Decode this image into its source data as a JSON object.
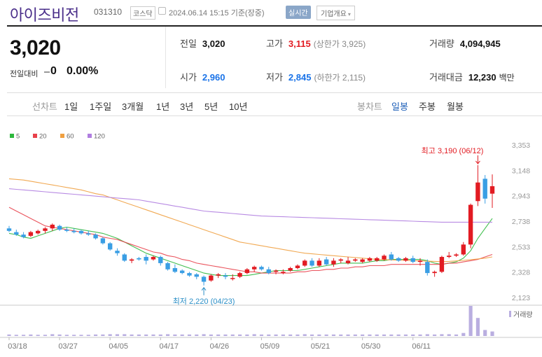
{
  "header": {
    "name": "아이즈비전",
    "code": "031310",
    "market": "코스닥",
    "datetime": "2024.06.14 15:15 기준(장중)",
    "realtime": "실시간",
    "overview": "기업개요"
  },
  "quote": {
    "price": "3,020",
    "change_label": "전일대비",
    "change_value": "0",
    "change_pct": "0.00%",
    "prev_label": "전일",
    "prev_value": "3,020",
    "high_label": "고가",
    "high_value": "3,115",
    "upper_limit": "(상한가 3,925)",
    "volume_label": "거래량",
    "volume_value": "4,094,945",
    "open_label": "시가",
    "open_value": "2,960",
    "low_label": "저가",
    "low_value": "2,845",
    "lower_limit": "(하한가 2,115)",
    "amount_label": "거래대금",
    "amount_value": "12,230",
    "amount_unit": "백만"
  },
  "tabs": {
    "line_label": "선차트",
    "line_items": [
      "1일",
      "1주일",
      "3개월",
      "1년",
      "3년",
      "5년",
      "10년"
    ],
    "candle_label": "봉차트",
    "candle_items": [
      "일봉",
      "주봉",
      "월봉"
    ],
    "active": "일봉"
  },
  "chart_data": {
    "type": "candlestick",
    "legend": [
      {
        "name": "5",
        "color": "#2db83d"
      },
      {
        "name": "20",
        "color": "#e8414b"
      },
      {
        "name": "60",
        "color": "#f0a040"
      },
      {
        "name": "120",
        "color": "#b07ee0"
      }
    ],
    "y_ticks": [
      3353,
      3148,
      2943,
      2738,
      2533,
      2328,
      2123
    ],
    "y_tick_labels": [
      "3,353",
      "3,148",
      "2,943",
      "2,738",
      "2,533",
      "2,328",
      "2,123"
    ],
    "ylim": [
      2123,
      3353
    ],
    "x_tick_labels": [
      "03/18",
      "03/27",
      "04/05",
      "04/17",
      "04/26",
      "05/09",
      "05/21",
      "05/30",
      "06/11"
    ],
    "x_tick_index": [
      0,
      7,
      14,
      21,
      28,
      35,
      42,
      49,
      56
    ],
    "high_annotation": "최고 3,190 (06/12)",
    "low_annotation": "최저 2,220 (04/23)",
    "volume_label": "거래량",
    "colors": {
      "up": "#e21b22",
      "down": "#3a9ee4",
      "volume": "#b9aee0"
    },
    "candles": [
      [
        2680,
        2700,
        2650,
        2660
      ],
      [
        2650,
        2670,
        2620,
        2630
      ],
      [
        2630,
        2650,
        2600,
        2610
      ],
      [
        2620,
        2660,
        2610,
        2650
      ],
      [
        2640,
        2670,
        2630,
        2660
      ],
      [
        2660,
        2690,
        2640,
        2680
      ],
      [
        2680,
        2720,
        2660,
        2710
      ],
      [
        2700,
        2710,
        2660,
        2670
      ],
      [
        2670,
        2690,
        2650,
        2660
      ],
      [
        2660,
        2680,
        2640,
        2650
      ],
      [
        2660,
        2670,
        2630,
        2640
      ],
      [
        2640,
        2660,
        2620,
        2630
      ],
      [
        2630,
        2640,
        2590,
        2600
      ],
      [
        2600,
        2610,
        2550,
        2560
      ],
      [
        2560,
        2570,
        2500,
        2510
      ],
      [
        2500,
        2520,
        2460,
        2480
      ],
      [
        2470,
        2480,
        2410,
        2420
      ],
      [
        2420,
        2440,
        2400,
        2430
      ],
      [
        2440,
        2450,
        2420,
        2430
      ],
      [
        2450,
        2470,
        2390,
        2420
      ],
      [
        2430,
        2460,
        2420,
        2450
      ],
      [
        2450,
        2460,
        2380,
        2400
      ],
      [
        2400,
        2410,
        2340,
        2350
      ],
      [
        2360,
        2390,
        2320,
        2330
      ],
      [
        2340,
        2350,
        2310,
        2320
      ],
      [
        2320,
        2330,
        2290,
        2300
      ],
      [
        2310,
        2320,
        2270,
        2290
      ],
      [
        2290,
        2300,
        2220,
        2250
      ],
      [
        2260,
        2310,
        2250,
        2300
      ],
      [
        2300,
        2320,
        2280,
        2310
      ],
      [
        2300,
        2320,
        2270,
        2290
      ],
      [
        2280,
        2310,
        2260,
        2280
      ],
      [
        2290,
        2330,
        2280,
        2320
      ],
      [
        2320,
        2360,
        2310,
        2350
      ],
      [
        2350,
        2380,
        2330,
        2370
      ],
      [
        2370,
        2380,
        2340,
        2350
      ],
      [
        2350,
        2370,
        2310,
        2320
      ],
      [
        2330,
        2350,
        2310,
        2340
      ],
      [
        2320,
        2350,
        2310,
        2330
      ],
      [
        2340,
        2370,
        2330,
        2360
      ],
      [
        2360,
        2390,
        2350,
        2380
      ],
      [
        2380,
        2430,
        2370,
        2420
      ],
      [
        2420,
        2440,
        2370,
        2380
      ],
      [
        2380,
        2440,
        2370,
        2420
      ],
      [
        2430,
        2450,
        2380,
        2390
      ],
      [
        2390,
        2440,
        2370,
        2420
      ],
      [
        2420,
        2440,
        2400,
        2430
      ],
      [
        2400,
        2450,
        2390,
        2420
      ],
      [
        2420,
        2440,
        2410,
        2430
      ],
      [
        2410,
        2440,
        2400,
        2430
      ],
      [
        2420,
        2450,
        2410,
        2440
      ],
      [
        2420,
        2450,
        2410,
        2440
      ],
      [
        2430,
        2470,
        2420,
        2460
      ],
      [
        2470,
        2490,
        2420,
        2430
      ],
      [
        2440,
        2450,
        2410,
        2420
      ],
      [
        2420,
        2450,
        2410,
        2440
      ],
      [
        2440,
        2460,
        2400,
        2410
      ],
      [
        2410,
        2440,
        2380,
        2420
      ],
      [
        2410,
        2430,
        2300,
        2320
      ],
      [
        2320,
        2340,
        2290,
        2330
      ],
      [
        2330,
        2460,
        2320,
        2450
      ],
      [
        2450,
        2490,
        2440,
        2460
      ],
      [
        2460,
        2480,
        2450,
        2470
      ],
      [
        2470,
        2570,
        2460,
        2550
      ],
      [
        2550,
        2880,
        2520,
        2870
      ],
      [
        2900,
        3190,
        2860,
        3050
      ],
      [
        3080,
        3110,
        2880,
        2920
      ],
      [
        2960,
        3115,
        2845,
        3020
      ]
    ],
    "volumes": [
      0.05,
      0.04,
      0.04,
      0.05,
      0.04,
      0.04,
      0.06,
      0.05,
      0.04,
      0.04,
      0.04,
      0.04,
      0.05,
      0.05,
      0.06,
      0.06,
      0.06,
      0.05,
      0.05,
      0.05,
      0.05,
      0.05,
      0.06,
      0.05,
      0.05,
      0.05,
      0.05,
      0.06,
      0.05,
      0.05,
      0.05,
      0.05,
      0.05,
      0.05,
      0.06,
      0.05,
      0.05,
      0.05,
      0.05,
      0.05,
      0.05,
      0.06,
      0.05,
      0.05,
      0.05,
      0.05,
      0.05,
      0.05,
      0.05,
      0.05,
      0.05,
      0.05,
      0.05,
      0.05,
      0.05,
      0.05,
      0.05,
      0.05,
      0.06,
      0.05,
      0.06,
      0.06,
      0.05,
      0.1,
      1.0,
      0.6,
      0.2,
      0.15
    ],
    "ma": [
      {
        "name": "5",
        "color": "#2db83d",
        "values": [
          2640,
          2630,
          2610,
          2600,
          2620,
          2640,
          2660,
          2680,
          2690,
          2680,
          2670,
          2660,
          2650,
          2640,
          2620,
          2600,
          2570,
          2540,
          2510,
          2480,
          2460,
          2440,
          2420,
          2400,
          2380,
          2360,
          2340,
          2320,
          2310,
          2300,
          2300,
          2300,
          2300,
          2300,
          2310,
          2320,
          2330,
          2340,
          2340,
          2340,
          2340,
          2350,
          2360,
          2370,
          2380,
          2390,
          2400,
          2400,
          2400,
          2400,
          2410,
          2420,
          2420,
          2430,
          2430,
          2430,
          2430,
          2430,
          2420,
          2400,
          2390,
          2400,
          2410,
          2440,
          2500,
          2600,
          2680,
          2760
        ]
      },
      {
        "name": "20",
        "color": "#e8414b",
        "values": [
          2850,
          2820,
          2790,
          2760,
          2730,
          2700,
          2690,
          2680,
          2670,
          2660,
          2650,
          2640,
          2630,
          2610,
          2600,
          2590,
          2570,
          2550,
          2530,
          2510,
          2490,
          2480,
          2460,
          2450,
          2430,
          2420,
          2400,
          2390,
          2380,
          2370,
          2360,
          2350,
          2340,
          2330,
          2330,
          2320,
          2320,
          2320,
          2320,
          2320,
          2330,
          2330,
          2340,
          2340,
          2350,
          2350,
          2360,
          2360,
          2370,
          2370,
          2380,
          2380,
          2380,
          2390,
          2390,
          2390,
          2390,
          2390,
          2390,
          2390,
          2390,
          2400,
          2400,
          2410,
          2420,
          2430,
          2450,
          2470
        ]
      },
      {
        "name": "60",
        "color": "#f0a040",
        "values": [
          3080,
          3075,
          3070,
          3060,
          3050,
          3040,
          3030,
          3020,
          3010,
          3000,
          2990,
          2975,
          2960,
          2950,
          2930,
          2910,
          2890,
          2870,
          2850,
          2830,
          2810,
          2790,
          2770,
          2750,
          2730,
          2710,
          2690,
          2670,
          2650,
          2630,
          2610,
          2590,
          2570,
          2560,
          2550,
          2540,
          2530,
          2520,
          2510,
          2500,
          2490,
          2480,
          2475,
          2470,
          2465,
          2460,
          2455,
          2450,
          2445,
          2440,
          2435,
          2430,
          2428,
          2426,
          2424,
          2422,
          2420,
          2418,
          2416,
          2414,
          2412,
          2414,
          2418,
          2422,
          2428,
          2434,
          2440,
          2450
        ]
      },
      {
        "name": "120",
        "color": "#b07ee0",
        "values": [
          3000,
          2995,
          2990,
          2985,
          2980,
          2975,
          2970,
          2965,
          2960,
          2955,
          2950,
          2945,
          2940,
          2935,
          2930,
          2925,
          2920,
          2915,
          2910,
          2900,
          2890,
          2880,
          2870,
          2860,
          2850,
          2840,
          2830,
          2820,
          2815,
          2810,
          2805,
          2800,
          2795,
          2790,
          2785,
          2780,
          2778,
          2776,
          2774,
          2772,
          2770,
          2768,
          2766,
          2764,
          2762,
          2760,
          2758,
          2756,
          2754,
          2752,
          2750,
          2748,
          2746,
          2744,
          2742,
          2740,
          2738,
          2736,
          2734,
          2732,
          2730,
          2730,
          2730,
          2730,
          2730,
          2730,
          2730,
          2730
        ]
      }
    ]
  }
}
